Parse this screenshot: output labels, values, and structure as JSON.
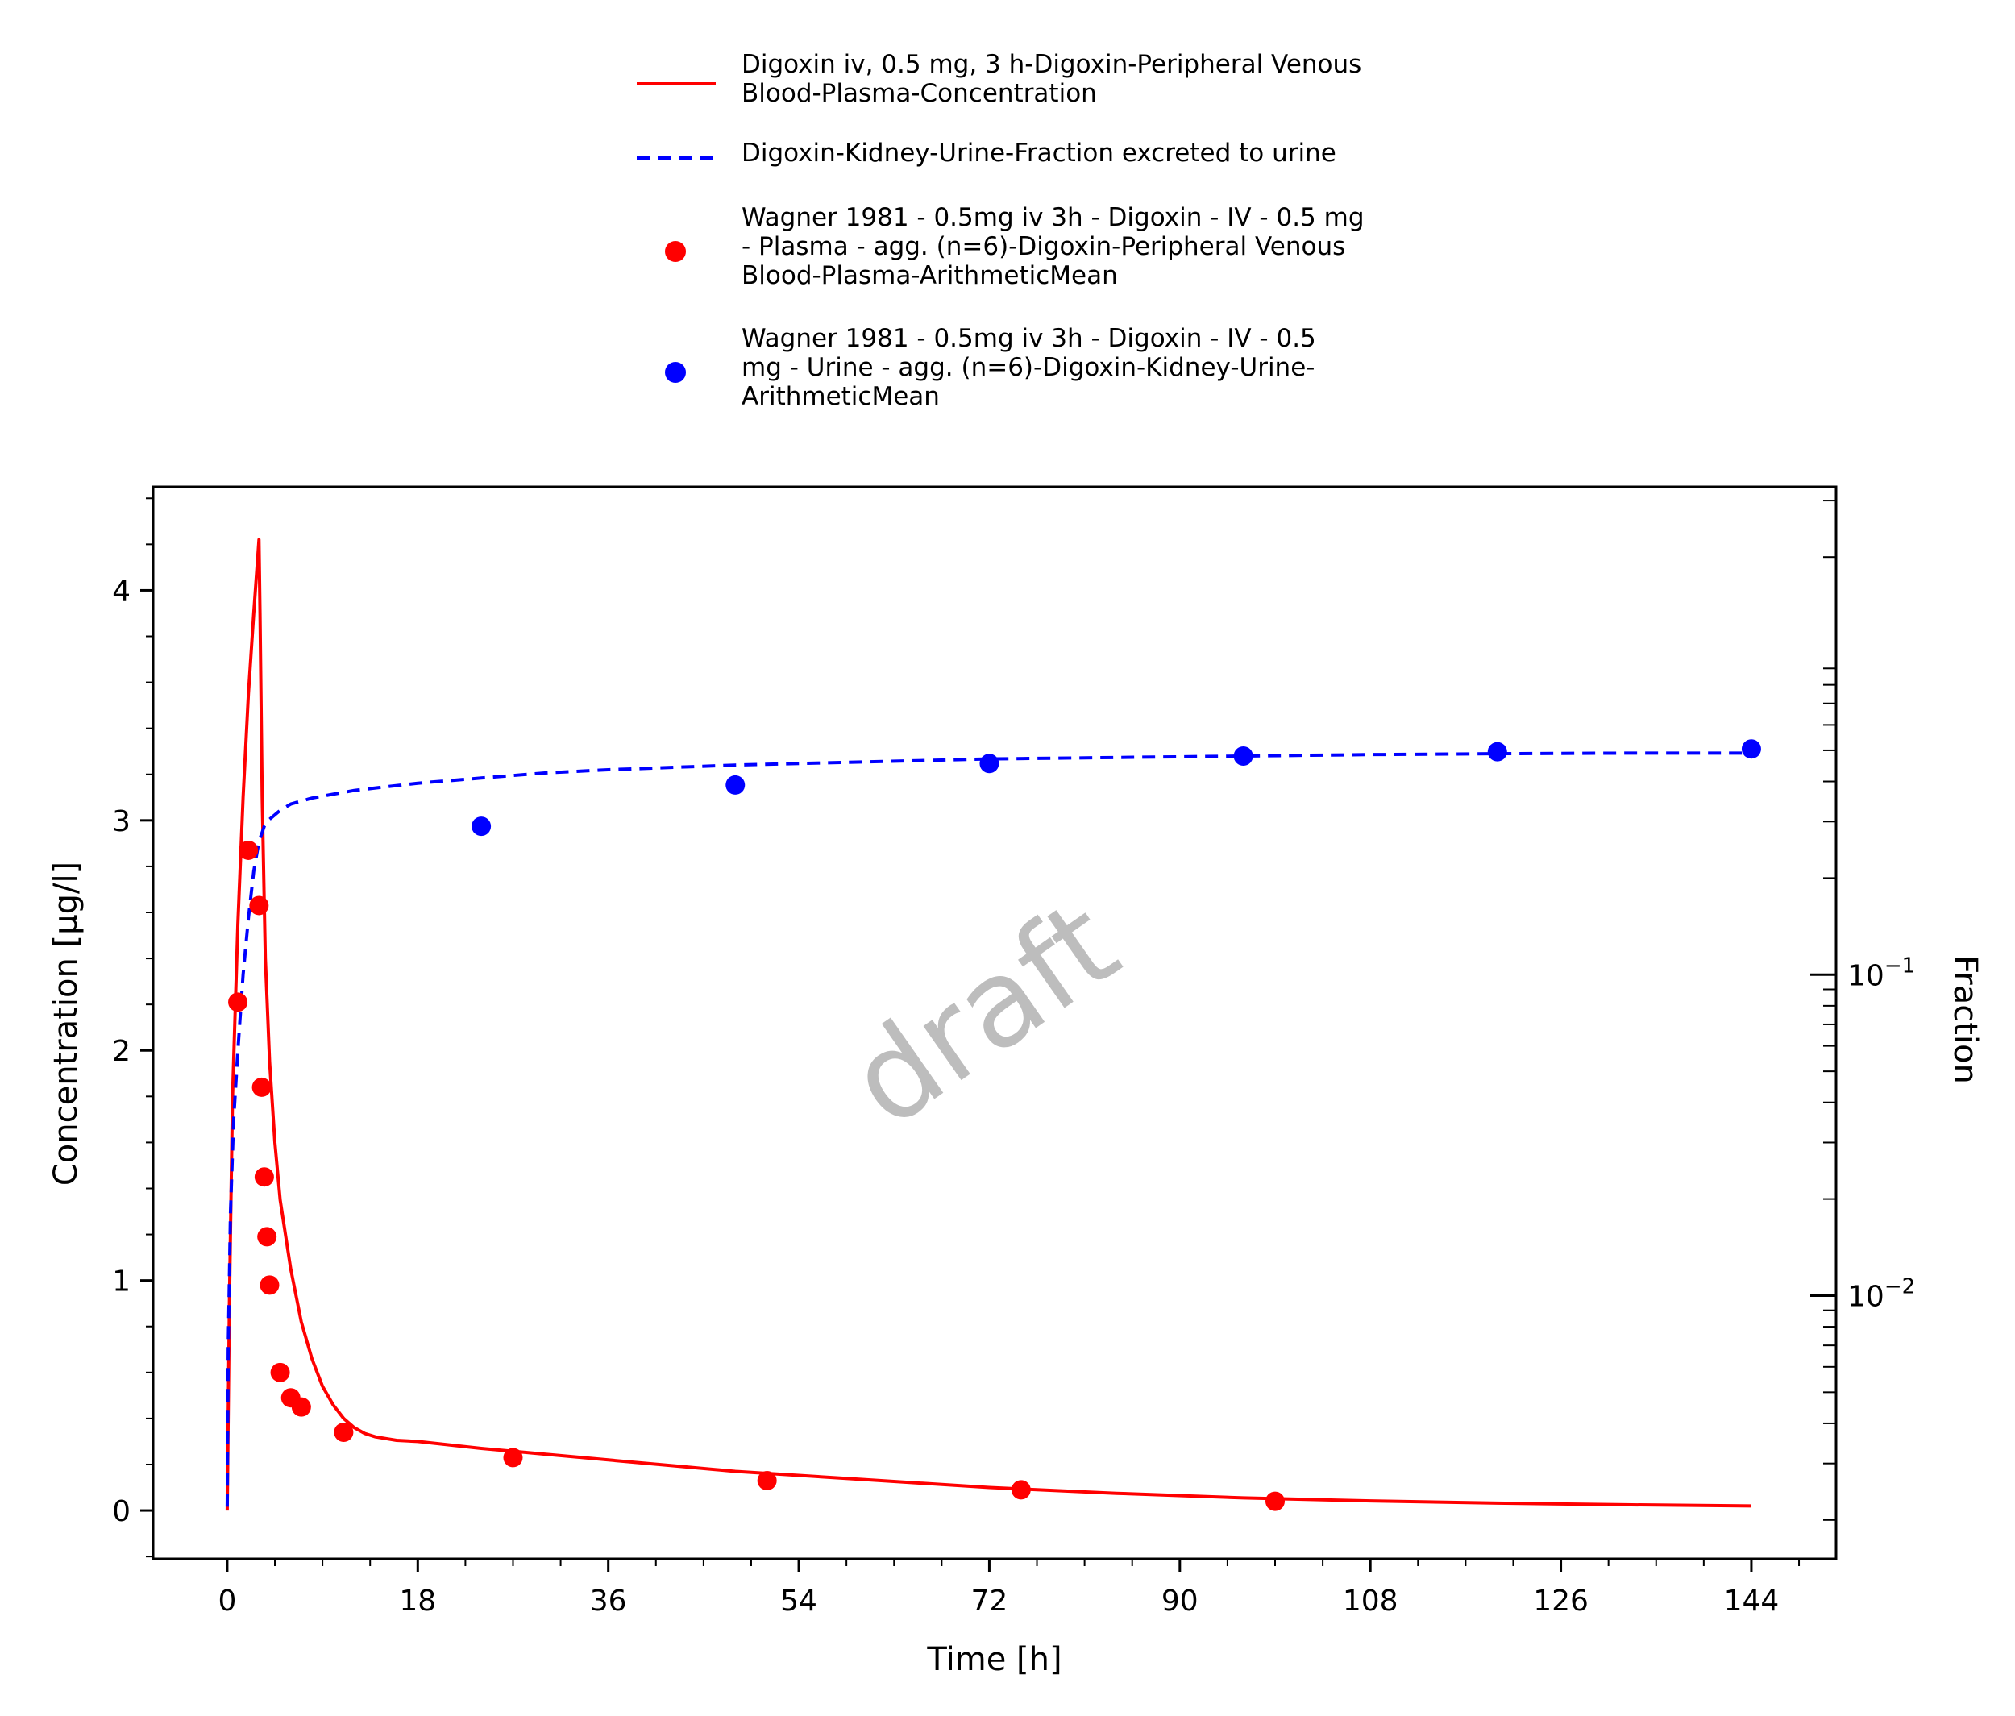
{
  "chart_data": {
    "type": "line",
    "watermark": "draft",
    "xlabel": "Time [h]",
    "ylabel": "Concentration [µg/l]",
    "y2label": "Fraction",
    "xlim": [
      -7,
      152
    ],
    "ylim": [
      -0.21,
      4.45
    ],
    "y2lim_log10": [
      -2.82,
      0.52
    ],
    "y2scale": "log",
    "grid": false,
    "legend_position": "top",
    "x_ticks": [
      "0",
      "18",
      "36",
      "54",
      "72",
      "90",
      "108",
      "126",
      "144"
    ],
    "x_tick_values": [
      0,
      18,
      36,
      54,
      72,
      90,
      108,
      126,
      144
    ],
    "y_ticks": [
      "0",
      "1",
      "2",
      "3",
      "4"
    ],
    "y_tick_values": [
      0,
      1,
      2,
      3,
      4
    ],
    "y2_ticks": [
      {
        "base": "10",
        "exp": "−1",
        "value": 0.1
      },
      {
        "base": "10",
        "exp": "−2",
        "value": 0.01
      }
    ],
    "series": [
      {
        "name_lines": [
          "Digoxin iv, 0.5 mg, 3 h-Digoxin-Peripheral Venous",
          "Blood-Plasma-Concentration"
        ],
        "kind": "line",
        "dash": "solid",
        "color": "#ff0000",
        "axis": "left",
        "x": [
          0,
          0.2,
          0.5,
          1,
          1.5,
          2,
          2.5,
          3,
          3.1,
          3.3,
          3.6,
          4,
          4.5,
          5,
          6,
          7,
          8,
          9,
          10,
          11,
          12,
          13,
          14,
          16,
          18,
          20,
          24,
          30,
          36,
          42,
          48,
          60,
          72,
          84,
          96,
          108,
          120,
          132,
          144
        ],
        "y": [
          0,
          0.9,
          1.8,
          2.55,
          3.1,
          3.55,
          3.9,
          4.22,
          3.9,
          3.1,
          2.4,
          1.95,
          1.6,
          1.35,
          1.05,
          0.82,
          0.66,
          0.54,
          0.46,
          0.4,
          0.36,
          0.335,
          0.32,
          0.305,
          0.3,
          0.29,
          0.27,
          0.245,
          0.22,
          0.195,
          0.17,
          0.135,
          0.1,
          0.075,
          0.055,
          0.042,
          0.032,
          0.025,
          0.02
        ]
      },
      {
        "name_lines": [
          "Digoxin-Kidney-Urine-Fraction excreted to urine"
        ],
        "kind": "line",
        "dash": "dashed",
        "color": "#0000ff",
        "axis": "right",
        "x": [
          0,
          0.1,
          0.3,
          0.6,
          1,
          1.5,
          2,
          2.5,
          3,
          3.5,
          4,
          5,
          6,
          8,
          10,
          12,
          15,
          18,
          24,
          30,
          36,
          48,
          60,
          72,
          84,
          96,
          108,
          120,
          132,
          144
        ],
        "y": [
          0.0022,
          0.007,
          0.018,
          0.035,
          0.058,
          0.1,
          0.15,
          0.21,
          0.26,
          0.29,
          0.305,
          0.325,
          0.34,
          0.355,
          0.365,
          0.375,
          0.385,
          0.395,
          0.41,
          0.425,
          0.435,
          0.45,
          0.46,
          0.47,
          0.475,
          0.48,
          0.485,
          0.488,
          0.49,
          0.49
        ]
      },
      {
        "name_lines": [
          "Wagner 1981 - 0.5mg iv 3h - Digoxin - IV - 0.5 mg",
          "- Plasma - agg. (n=6)-Digoxin-Peripheral Venous",
          "Blood-Plasma-ArithmeticMean"
        ],
        "kind": "scatter",
        "color": "#ff0000",
        "axis": "left",
        "x": [
          1,
          2,
          3,
          3.25,
          3.5,
          3.75,
          4,
          5,
          6,
          7,
          11,
          27,
          51,
          75,
          99
        ],
        "y": [
          2.21,
          2.87,
          2.63,
          1.84,
          1.45,
          1.19,
          0.98,
          0.6,
          0.49,
          0.45,
          0.34,
          0.23,
          0.13,
          0.09,
          0.04
        ]
      },
      {
        "name_lines": [
          "Wagner 1981 - 0.5mg iv 3h - Digoxin - IV - 0.5",
          "mg - Urine - agg. (n=6)-Digoxin-Kidney-Urine-",
          "ArithmeticMean"
        ],
        "kind": "scatter",
        "color": "#0000ff",
        "axis": "right",
        "x": [
          24,
          48,
          72,
          96,
          120,
          144
        ],
        "y": [
          0.29,
          0.39,
          0.455,
          0.48,
          0.495,
          0.505
        ]
      }
    ]
  }
}
